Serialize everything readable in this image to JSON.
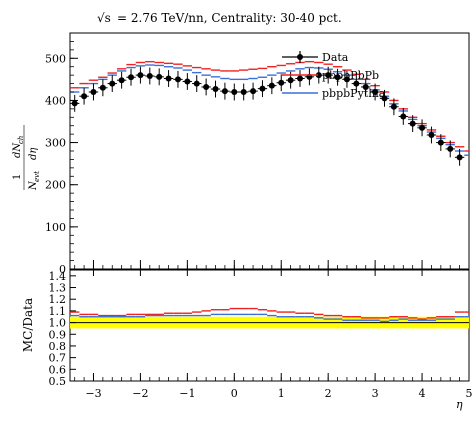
{
  "header": {
    "sqrt_symbol": "√s",
    "rest": " = 2.76 TeV/nn, Centrality: 30-40 pct."
  },
  "chart_data": [
    {
      "type": "line",
      "title": "√s = 2.76 TeV/nn, Centrality: 30-40 pct.",
      "ylabel": "1/N_evt dN_ch/dη",
      "xlabel": "η",
      "xlim": [
        -3.5,
        5
      ],
      "ylim": [
        0,
        560
      ],
      "x_ticks": [
        -3,
        -2,
        -1,
        0,
        1,
        2,
        3,
        4,
        5
      ],
      "y_ticks": [
        0,
        100,
        200,
        300,
        400,
        500
      ],
      "grid": false,
      "legend_position": "top-right",
      "series": [
        {
          "name": "Data",
          "color": "#000000",
          "style": "points-with-errors",
          "x": [
            -3.4,
            -3.2,
            -3.0,
            -2.8,
            -2.6,
            -2.4,
            -2.2,
            -2.0,
            -1.8,
            -1.6,
            -1.4,
            -1.2,
            -1.0,
            -0.8,
            -0.6,
            -0.4,
            -0.2,
            0.0,
            0.2,
            0.4,
            0.6,
            0.8,
            1.0,
            1.2,
            1.4,
            1.6,
            1.8,
            2.0,
            2.2,
            2.4,
            2.6,
            2.8,
            3.0,
            3.2,
            3.4,
            3.6,
            3.8,
            4.0,
            4.2,
            4.4,
            4.6,
            4.8
          ],
          "values": [
            393,
            410,
            420,
            430,
            440,
            448,
            455,
            460,
            458,
            456,
            452,
            450,
            445,
            440,
            432,
            427,
            422,
            420,
            420,
            422,
            428,
            435,
            442,
            448,
            452,
            456,
            460,
            460,
            455,
            450,
            440,
            432,
            420,
            405,
            385,
            362,
            345,
            335,
            318,
            300,
            285,
            265
          ],
          "errors": [
            20,
            20,
            20,
            20,
            20,
            20,
            20,
            20,
            20,
            20,
            20,
            20,
            20,
            20,
            20,
            20,
            20,
            20,
            20,
            20,
            20,
            20,
            20,
            20,
            20,
            20,
            20,
            20,
            20,
            20,
            20,
            20,
            20,
            20,
            20,
            20,
            20,
            20,
            20,
            20,
            20,
            20
          ]
        },
        {
          "name": "pbpbPbPb",
          "color": "#ee2222",
          "style": "histogram",
          "x": [
            -3.5,
            -3.3,
            -3.1,
            -2.9,
            -2.7,
            -2.5,
            -2.3,
            -2.1,
            -1.9,
            -1.7,
            -1.5,
            -1.3,
            -1.1,
            -0.9,
            -0.7,
            -0.5,
            -0.3,
            -0.1,
            0.1,
            0.3,
            0.5,
            0.7,
            0.9,
            1.1,
            1.3,
            1.5,
            1.7,
            1.9,
            2.1,
            2.3,
            2.5,
            2.7,
            2.9,
            3.1,
            3.3,
            3.5,
            3.7,
            3.9,
            4.1,
            4.3,
            4.5,
            4.7,
            4.9
          ],
          "values": [
            430,
            440,
            448,
            455,
            465,
            475,
            485,
            490,
            492,
            490,
            488,
            486,
            482,
            478,
            475,
            472,
            470,
            470,
            472,
            474,
            476,
            480,
            483,
            487,
            490,
            492,
            490,
            486,
            480,
            472,
            462,
            450,
            435,
            420,
            400,
            380,
            360,
            345,
            330,
            315,
            300,
            290,
            280
          ]
        },
        {
          "name": "pbpbPythia",
          "color": "#3b6fd8",
          "style": "histogram",
          "x": [
            -3.5,
            -3.3,
            -3.1,
            -2.9,
            -2.7,
            -2.5,
            -2.3,
            -2.1,
            -1.9,
            -1.7,
            -1.5,
            -1.3,
            -1.1,
            -0.9,
            -0.7,
            -0.5,
            -0.3,
            -0.1,
            0.1,
            0.3,
            0.5,
            0.7,
            0.9,
            1.1,
            1.3,
            1.5,
            1.7,
            1.9,
            2.1,
            2.3,
            2.5,
            2.7,
            2.9,
            3.1,
            3.3,
            3.5,
            3.7,
            3.9,
            4.1,
            4.3,
            4.5,
            4.7,
            4.9
          ],
          "values": [
            420,
            430,
            440,
            450,
            460,
            470,
            478,
            482,
            484,
            483,
            480,
            477,
            472,
            466,
            460,
            456,
            452,
            450,
            450,
            452,
            455,
            460,
            465,
            470,
            475,
            478,
            477,
            474,
            468,
            460,
            450,
            440,
            425,
            410,
            392,
            375,
            355,
            340,
            325,
            310,
            295,
            280,
            270
          ]
        }
      ]
    },
    {
      "type": "line",
      "ylabel": "MC/Data",
      "xlabel": "η",
      "xlim": [
        -3.5,
        5
      ],
      "ylim": [
        0.5,
        1.45
      ],
      "y_ticks": [
        0.5,
        0.6,
        0.7,
        0.8,
        0.9,
        1.0,
        1.1,
        1.2,
        1.3,
        1.4
      ],
      "x_ticks": [
        -3,
        -2,
        -1,
        0,
        1,
        2,
        3,
        4,
        5
      ],
      "band_color": "#ffff00",
      "band_halfwidth": 0.05,
      "series": [
        {
          "name": "pbpbPbPb",
          "color": "#ee2222",
          "values": [
            1.09,
            1.07,
            1.07,
            1.06,
            1.06,
            1.06,
            1.07,
            1.07,
            1.07,
            1.07,
            1.08,
            1.08,
            1.08,
            1.09,
            1.1,
            1.11,
            1.11,
            1.12,
            1.12,
            1.12,
            1.11,
            1.1,
            1.09,
            1.09,
            1.08,
            1.08,
            1.07,
            1.06,
            1.06,
            1.05,
            1.05,
            1.04,
            1.04,
            1.04,
            1.05,
            1.05,
            1.04,
            1.03,
            1.04,
            1.05,
            1.05,
            1.09,
            1.09
          ]
        },
        {
          "name": "pbpbPythia",
          "color": "#3b6fd8",
          "values": [
            1.06,
            1.05,
            1.05,
            1.05,
            1.05,
            1.05,
            1.05,
            1.05,
            1.06,
            1.06,
            1.06,
            1.06,
            1.06,
            1.06,
            1.06,
            1.07,
            1.07,
            1.07,
            1.07,
            1.07,
            1.07,
            1.06,
            1.05,
            1.05,
            1.05,
            1.05,
            1.04,
            1.03,
            1.03,
            1.02,
            1.02,
            1.02,
            1.02,
            1.01,
            1.02,
            1.03,
            1.02,
            1.02,
            1.02,
            1.03,
            1.03,
            1.05,
            1.05
          ]
        }
      ]
    }
  ],
  "x_axis_symbol": "η"
}
